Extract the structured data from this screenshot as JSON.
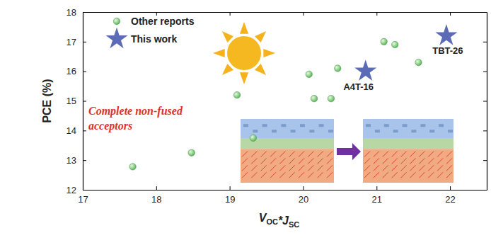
{
  "chart_data": {
    "type": "scatter",
    "xlabel": [
      {
        "text": "V",
        "sub": "OC"
      },
      {
        "text": "*J",
        "sub": "SC"
      }
    ],
    "ylabel": "PCE (%)",
    "xlim": [
      17,
      22.5
    ],
    "ylim": [
      12,
      18
    ],
    "xticks": [
      17,
      18,
      19,
      20,
      21,
      22
    ],
    "yticks": [
      12,
      13,
      14,
      15,
      16,
      17,
      18
    ],
    "legend": "top-left",
    "annotations": [
      "Complete non-fused",
      "acceptors"
    ],
    "series": [
      {
        "name": "Other reports",
        "color": "#5cb85c",
        "marker": "circle",
        "x": [
          17.68,
          18.48,
          19.1,
          19.32,
          20.08,
          20.15,
          20.38,
          20.47,
          21.1,
          21.25,
          21.57
        ],
        "values": [
          12.78,
          13.25,
          15.2,
          13.75,
          15.9,
          15.08,
          15.08,
          16.1,
          17.0,
          16.9,
          16.3
        ]
      },
      {
        "name": "This work",
        "color": "#5b6bb5",
        "marker": "star",
        "x": [
          20.85,
          21.95
        ],
        "values": [
          16.0,
          17.2
        ],
        "labels": [
          "A4T-16",
          "TBT-26"
        ]
      }
    ]
  }
}
